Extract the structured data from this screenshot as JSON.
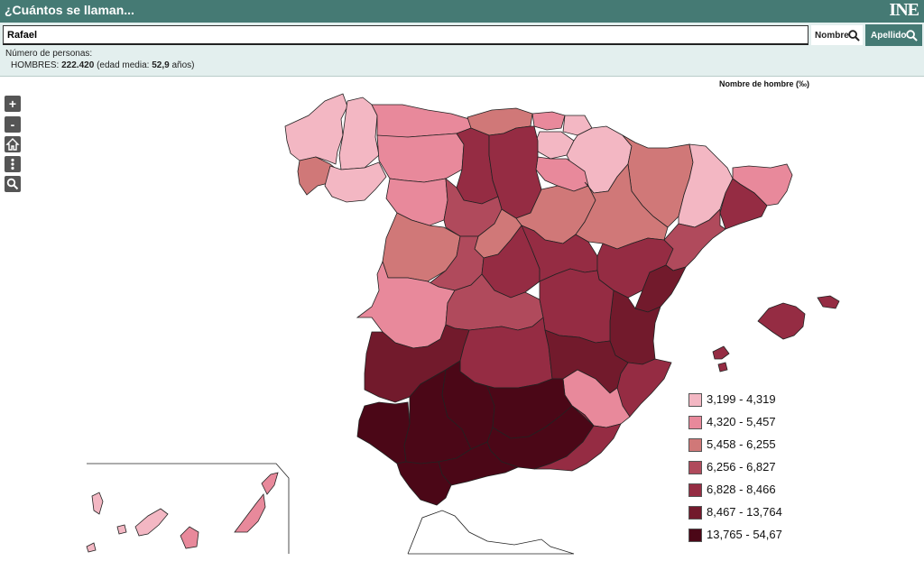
{
  "app": {
    "title": "¿Cuántos se llaman...",
    "logo": "INE"
  },
  "search": {
    "value": "Rafael",
    "btn_nombre": "Nombre",
    "btn_apellido": "Apellido"
  },
  "result": {
    "count_label": "Número de personas:",
    "gender": "HOMBRES:",
    "count": "222.420",
    "age_prefix": "(edad media:",
    "age": "52,9",
    "age_suffix": "años)"
  },
  "map": {
    "legend_title": "Nombre de hombre (‰)",
    "controls": {
      "zoom_in": "+",
      "zoom_out": "-"
    },
    "legend": [
      {
        "label": "3,199 - 4,319",
        "color": "#f3b7c3"
      },
      {
        "label": "4,320 - 5,457",
        "color": "#e8899b"
      },
      {
        "label": "5,458 - 6,255",
        "color": "#d07878"
      },
      {
        "label": "6,256 - 6,827",
        "color": "#b04a5c"
      },
      {
        "label": "6,828 - 8,466",
        "color": "#952c43"
      },
      {
        "label": "8,467 - 13,764",
        "color": "#721a2c"
      },
      {
        "label": "13,765 - 54,67",
        "color": "#4b0717"
      }
    ]
  }
}
